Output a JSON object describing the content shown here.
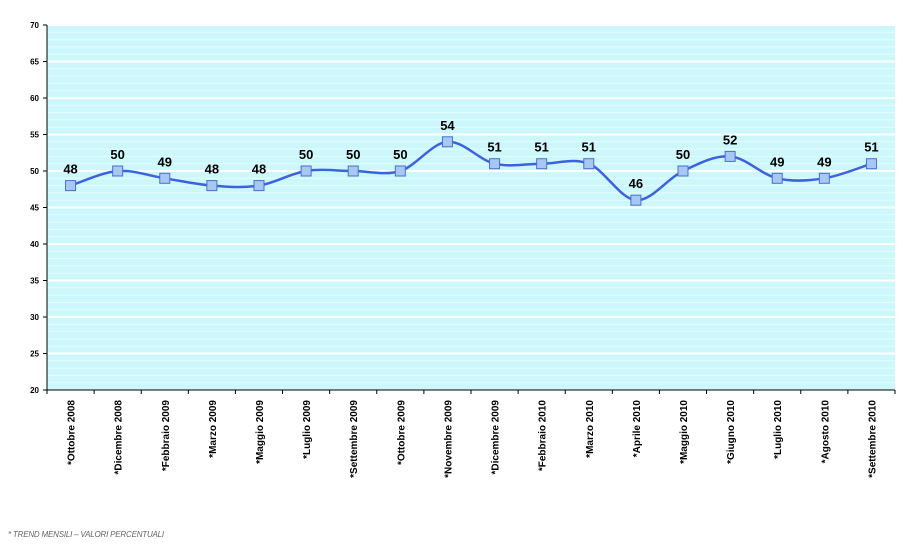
{
  "chart_data": {
    "type": "line",
    "categories": [
      "*Ottobre 2008",
      "*Dicembre 2008",
      "*Febbraio 2009",
      "*Marzo 2009",
      "*Maggio 2009",
      "*Luglio 2009",
      "*Settembre 2009",
      "*Ottobre 2009",
      "*Novembre 2009",
      "*Dicembre 2009",
      "*Febbraio 2010",
      "*Marzo 2010",
      "*Aprile 2010",
      "*Maggio 2010",
      "*Giugno 2010",
      "*Luglio 2010",
      "*Agosto 2010",
      "*Settembre 2010"
    ],
    "series": [
      {
        "values": [
          48,
          50,
          49,
          48,
          48,
          50,
          50,
          50,
          54,
          51,
          51,
          51,
          46,
          50,
          52,
          49,
          49,
          51
        ]
      }
    ],
    "yticks": [
      "20",
      "25",
      "30",
      "35",
      "40",
      "45",
      "50",
      "55",
      "60",
      "65",
      "70"
    ],
    "ylim": [
      20,
      70
    ],
    "grid": true,
    "colors": {
      "plot_bg": "#ccf7fb",
      "line": "#3b62e0",
      "marker_fill": "#a7c8f5",
      "marker_stroke": "#4a6fcf"
    }
  },
  "footnote": "* TREND MENSILI – VALORI PERCENTUALI"
}
